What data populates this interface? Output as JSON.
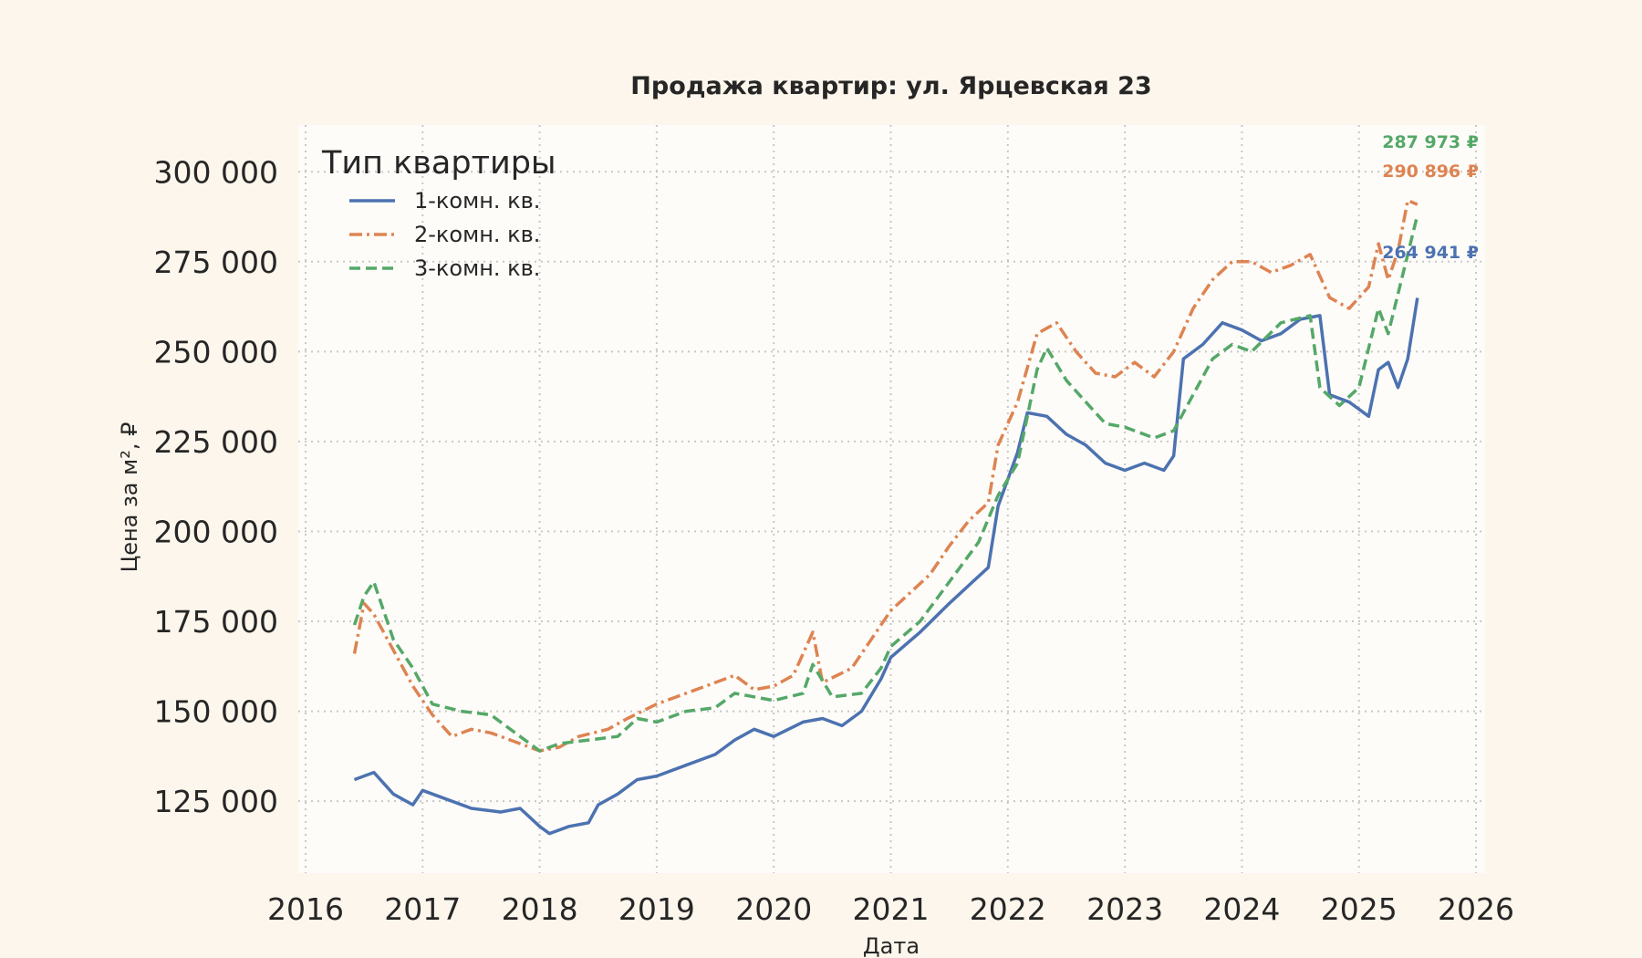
{
  "chart_data": {
    "type": "line",
    "title": "Продажа квартир: ул. Ярцевская 23",
    "xlabel": "Дата",
    "ylabel": "Цена за м², ₽",
    "xlim": [
      2016,
      2026
    ],
    "ylim": [
      105000,
      313000
    ],
    "grid": true,
    "x_ticks": [
      "2016",
      "2017",
      "2018",
      "2019",
      "2020",
      "2021",
      "2022",
      "2023",
      "2024",
      "2025",
      "2026"
    ],
    "y_ticks": [
      "125 000",
      "150 000",
      "175 000",
      "200 000",
      "225 000",
      "250 000",
      "275 000",
      "300 000"
    ],
    "legend": {
      "title": "Тип квартиры",
      "placement": "top-left",
      "entries": [
        "1-комн. кв.",
        "2-комн. кв.",
        "3-комн. кв."
      ]
    },
    "series": [
      {
        "name": "1-комн. кв.",
        "color": "#4c72b0",
        "style": "solid",
        "end_label": "264 941 ₽",
        "points": [
          [
            "2016-06",
            131000
          ],
          [
            "2016-08",
            133000
          ],
          [
            "2016-10",
            127000
          ],
          [
            "2016-12",
            124000
          ],
          [
            "2017-01",
            128000
          ],
          [
            "2017-03",
            126000
          ],
          [
            "2017-06",
            123000
          ],
          [
            "2017-09",
            122000
          ],
          [
            "2017-11",
            123000
          ],
          [
            "2018-01",
            118000
          ],
          [
            "2018-02",
            116000
          ],
          [
            "2018-04",
            118000
          ],
          [
            "2018-06",
            119000
          ],
          [
            "2018-07",
            124000
          ],
          [
            "2018-09",
            127000
          ],
          [
            "2018-11",
            131000
          ],
          [
            "2019-01",
            132000
          ],
          [
            "2019-04",
            135000
          ],
          [
            "2019-07",
            138000
          ],
          [
            "2019-09",
            142000
          ],
          [
            "2019-11",
            145000
          ],
          [
            "2020-01",
            143000
          ],
          [
            "2020-04",
            147000
          ],
          [
            "2020-06",
            148000
          ],
          [
            "2020-08",
            146000
          ],
          [
            "2020-10",
            150000
          ],
          [
            "2020-12",
            159000
          ],
          [
            "2021-01",
            165000
          ],
          [
            "2021-04",
            172000
          ],
          [
            "2021-07",
            180000
          ],
          [
            "2021-09",
            185000
          ],
          [
            "2021-11",
            190000
          ],
          [
            "2021-12",
            207000
          ],
          [
            "2022-02",
            222000
          ],
          [
            "2022-03",
            233000
          ],
          [
            "2022-05",
            232000
          ],
          [
            "2022-07",
            227000
          ],
          [
            "2022-09",
            224000
          ],
          [
            "2022-11",
            219000
          ],
          [
            "2023-01",
            217000
          ],
          [
            "2023-03",
            219000
          ],
          [
            "2023-05",
            217000
          ],
          [
            "2023-06",
            221000
          ],
          [
            "2023-07",
            248000
          ],
          [
            "2023-09",
            252000
          ],
          [
            "2023-11",
            258000
          ],
          [
            "2024-01",
            256000
          ],
          [
            "2024-03",
            253000
          ],
          [
            "2024-05",
            255000
          ],
          [
            "2024-07",
            259000
          ],
          [
            "2024-09",
            260000
          ],
          [
            "2024-10",
            238000
          ],
          [
            "2024-12",
            236000
          ],
          [
            "2025-02",
            232000
          ],
          [
            "2025-03",
            245000
          ],
          [
            "2025-04",
            247000
          ],
          [
            "2025-05",
            240000
          ],
          [
            "2025-06",
            248000
          ],
          [
            "2025-07",
            264941
          ]
        ]
      },
      {
        "name": "2-комн. кв.",
        "color": "#dd8452",
        "style": "dashdot",
        "end_label": "290 896 ₽",
        "points": [
          [
            "2016-06",
            166000
          ],
          [
            "2016-07",
            180000
          ],
          [
            "2016-08",
            177000
          ],
          [
            "2016-10",
            167000
          ],
          [
            "2016-12",
            157000
          ],
          [
            "2017-02",
            149000
          ],
          [
            "2017-04",
            143000
          ],
          [
            "2017-06",
            145000
          ],
          [
            "2017-08",
            144000
          ],
          [
            "2017-10",
            142000
          ],
          [
            "2018-01",
            139000
          ],
          [
            "2018-03",
            140000
          ],
          [
            "2018-05",
            143000
          ],
          [
            "2018-08",
            145000
          ],
          [
            "2018-10",
            148000
          ],
          [
            "2019-01",
            152000
          ],
          [
            "2019-04",
            155000
          ],
          [
            "2019-07",
            158000
          ],
          [
            "2019-09",
            160000
          ],
          [
            "2019-11",
            156000
          ],
          [
            "2020-01",
            157000
          ],
          [
            "2020-03",
            160000
          ],
          [
            "2020-05",
            172000
          ],
          [
            "2020-06",
            158000
          ],
          [
            "2020-09",
            162000
          ],
          [
            "2020-11",
            170000
          ],
          [
            "2021-01",
            178000
          ],
          [
            "2021-03",
            183000
          ],
          [
            "2021-05",
            188000
          ],
          [
            "2021-07",
            196000
          ],
          [
            "2021-09",
            203000
          ],
          [
            "2021-11",
            208000
          ],
          [
            "2021-12",
            224000
          ],
          [
            "2022-02",
            236000
          ],
          [
            "2022-04",
            255000
          ],
          [
            "2022-06",
            258000
          ],
          [
            "2022-08",
            250000
          ],
          [
            "2022-10",
            244000
          ],
          [
            "2022-12",
            243000
          ],
          [
            "2023-02",
            247000
          ],
          [
            "2023-04",
            243000
          ],
          [
            "2023-06",
            250000
          ],
          [
            "2023-08",
            262000
          ],
          [
            "2023-10",
            270000
          ],
          [
            "2023-12",
            275000
          ],
          [
            "2024-02",
            275000
          ],
          [
            "2024-04",
            272000
          ],
          [
            "2024-06",
            274000
          ],
          [
            "2024-08",
            277000
          ],
          [
            "2024-10",
            265000
          ],
          [
            "2024-12",
            262000
          ],
          [
            "2025-02",
            268000
          ],
          [
            "2025-03",
            280000
          ],
          [
            "2025-04",
            270000
          ],
          [
            "2025-05",
            278000
          ],
          [
            "2025-06",
            292000
          ],
          [
            "2025-07",
            290896
          ]
        ]
      },
      {
        "name": "3-комн. кв.",
        "color": "#55a868",
        "style": "dashed",
        "end_label": "287 973 ₽",
        "points": [
          [
            "2016-06",
            174000
          ],
          [
            "2016-07",
            182000
          ],
          [
            "2016-08",
            186000
          ],
          [
            "2016-10",
            170000
          ],
          [
            "2016-12",
            162000
          ],
          [
            "2017-02",
            152000
          ],
          [
            "2017-05",
            150000
          ],
          [
            "2017-08",
            149000
          ],
          [
            "2017-10",
            145000
          ],
          [
            "2018-01",
            139000
          ],
          [
            "2018-03",
            141000
          ],
          [
            "2018-06",
            142000
          ],
          [
            "2018-09",
            143000
          ],
          [
            "2018-11",
            148000
          ],
          [
            "2019-01",
            147000
          ],
          [
            "2019-04",
            150000
          ],
          [
            "2019-07",
            151000
          ],
          [
            "2019-09",
            155000
          ],
          [
            "2019-11",
            154000
          ],
          [
            "2020-01",
            153000
          ],
          [
            "2020-04",
            155000
          ],
          [
            "2020-05",
            163000
          ],
          [
            "2020-07",
            154000
          ],
          [
            "2020-10",
            155000
          ],
          [
            "2020-12",
            162000
          ],
          [
            "2021-01",
            168000
          ],
          [
            "2021-04",
            175000
          ],
          [
            "2021-07",
            186000
          ],
          [
            "2021-10",
            197000
          ],
          [
            "2021-12",
            210000
          ],
          [
            "2022-02",
            219000
          ],
          [
            "2022-04",
            245000
          ],
          [
            "2022-05",
            251000
          ],
          [
            "2022-07",
            242000
          ],
          [
            "2022-09",
            236000
          ],
          [
            "2022-11",
            230000
          ],
          [
            "2023-01",
            229000
          ],
          [
            "2023-04",
            226000
          ],
          [
            "2023-06",
            228000
          ],
          [
            "2023-08",
            238000
          ],
          [
            "2023-10",
            248000
          ],
          [
            "2023-12",
            252000
          ],
          [
            "2024-02",
            250000
          ],
          [
            "2024-05",
            258000
          ],
          [
            "2024-08",
            260000
          ],
          [
            "2024-09",
            240000
          ],
          [
            "2024-11",
            235000
          ],
          [
            "2025-01",
            240000
          ],
          [
            "2025-03",
            262000
          ],
          [
            "2025-04",
            255000
          ],
          [
            "2025-05",
            266000
          ],
          [
            "2025-06",
            277000
          ],
          [
            "2025-07",
            287973
          ]
        ]
      }
    ]
  }
}
